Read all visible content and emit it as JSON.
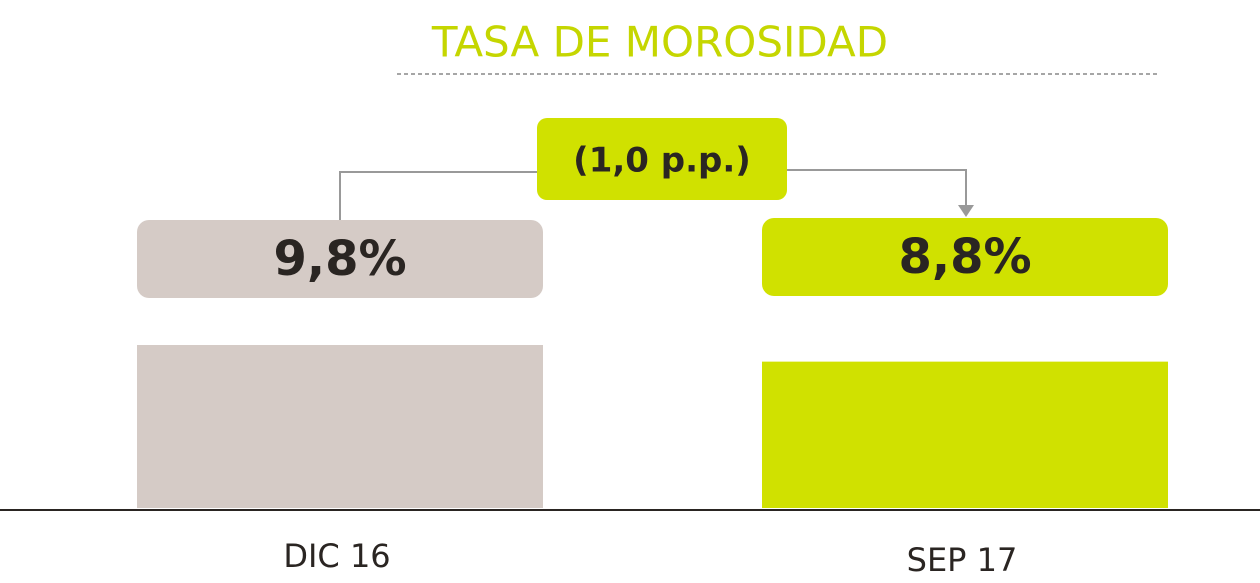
{
  "chart_data": {
    "type": "bar",
    "title": "TASA DE MOROSIDAD",
    "categories": [
      "DIC 16",
      "SEP 17"
    ],
    "values": [
      9.8,
      8.8
    ],
    "value_labels": [
      "9,8%",
      "8,8%"
    ],
    "colors": [
      "#d5cbc6",
      "#d0e100"
    ],
    "title_color": "#c5d600",
    "annotation": "(1,0 p.p.)"
  }
}
